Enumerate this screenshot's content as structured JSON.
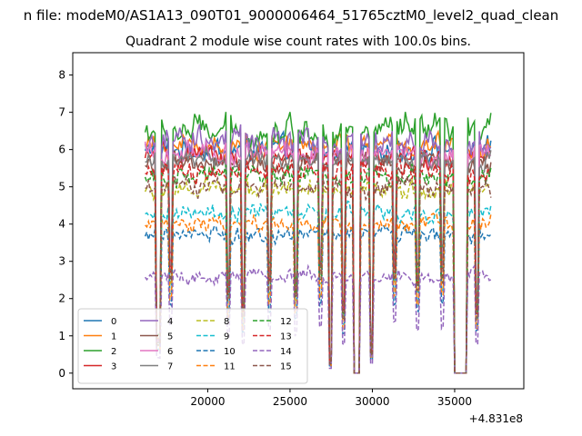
{
  "figure": {
    "suptitle": "n file: modeM0/AS1A13_090T01_9000006464_51765cztM0_level2_quad_clean",
    "offset_text": "+4.831e8"
  },
  "chart_data": {
    "type": "line",
    "title": "Quadrant 2 module wise count rates with 100.0s bins.",
    "xlabel": "",
    "ylabel": "",
    "xlim": [
      11800,
      39200
    ],
    "ylim": [
      -0.42,
      8.6
    ],
    "x_ticks": [
      20000,
      25000,
      30000,
      35000
    ],
    "y_ticks": [
      0,
      1,
      2,
      3,
      4,
      5,
      6,
      7,
      8
    ],
    "x_tick_labels": [
      "20000",
      "25000",
      "30000",
      "35000"
    ],
    "y_tick_labels": [
      "0",
      "1",
      "2",
      "3",
      "4",
      "5",
      "6",
      "7",
      "8"
    ],
    "x_start": 16200,
    "x_end": 37200,
    "x_step": 100,
    "gaps": [
      {
        "start": 16850,
        "end": 17150,
        "depth": 0.15
      },
      {
        "start": 17650,
        "end": 17850,
        "depth": 0.5
      },
      {
        "start": 21150,
        "end": 21350,
        "depth": 0.4
      },
      {
        "start": 22050,
        "end": 22250,
        "depth": 0.3
      },
      {
        "start": 23650,
        "end": 23850,
        "depth": 0.45
      },
      {
        "start": 25250,
        "end": 25450,
        "depth": 0.4
      },
      {
        "start": 26750,
        "end": 26950,
        "depth": 0.5
      },
      {
        "start": 27350,
        "end": 27550,
        "depth": 0.05
      },
      {
        "start": 28150,
        "end": 28350,
        "depth": 0.3
      },
      {
        "start": 28850,
        "end": 29250,
        "depth": 0.0
      },
      {
        "start": 29850,
        "end": 30050,
        "depth": 0.1
      },
      {
        "start": 31250,
        "end": 31450,
        "depth": 0.5
      },
      {
        "start": 32650,
        "end": 32850,
        "depth": 0.45
      },
      {
        "start": 34150,
        "end": 34350,
        "depth": 0.5
      },
      {
        "start": 35000,
        "end": 35700,
        "depth": 0.0
      },
      {
        "start": 36250,
        "end": 36450,
        "depth": 0.3
      }
    ],
    "grid": false,
    "legend_position": "lower-left",
    "legend_columns": 4,
    "series": [
      {
        "name": "0",
        "color": "#1f77b4",
        "dash": "solid",
        "level": 6.0,
        "noise": 0.35
      },
      {
        "name": "1",
        "color": "#ff7f0e",
        "dash": "solid",
        "level": 6.1,
        "noise": 0.35
      },
      {
        "name": "2",
        "color": "#2ca02c",
        "dash": "solid",
        "level": 6.5,
        "noise": 0.45
      },
      {
        "name": "3",
        "color": "#d62728",
        "dash": "solid",
        "level": 5.8,
        "noise": 0.3
      },
      {
        "name": "4",
        "color": "#9467bd",
        "dash": "solid",
        "level": 6.2,
        "noise": 0.45
      },
      {
        "name": "5",
        "color": "#8c564b",
        "dash": "solid",
        "level": 5.6,
        "noise": 0.3
      },
      {
        "name": "6",
        "color": "#e377c2",
        "dash": "solid",
        "level": 5.9,
        "noise": 0.35
      },
      {
        "name": "7",
        "color": "#7f7f7f",
        "dash": "solid",
        "level": 5.7,
        "noise": 0.3
      },
      {
        "name": "8",
        "color": "#bcbd22",
        "dash": "dashed",
        "level": 4.9,
        "noise": 0.3
      },
      {
        "name": "9",
        "color": "#17becf",
        "dash": "dashed",
        "level": 4.3,
        "noise": 0.25
      },
      {
        "name": "10",
        "color": "#1f77b4",
        "dash": "dashed",
        "level": 3.7,
        "noise": 0.25
      },
      {
        "name": "11",
        "color": "#ff7f0e",
        "dash": "dashed",
        "level": 4.0,
        "noise": 0.25
      },
      {
        "name": "12",
        "color": "#2ca02c",
        "dash": "dashed",
        "level": 5.3,
        "noise": 0.3
      },
      {
        "name": "13",
        "color": "#d62728",
        "dash": "dashed",
        "level": 5.4,
        "noise": 0.3
      },
      {
        "name": "14",
        "color": "#9467bd",
        "dash": "dashed",
        "level": 2.6,
        "noise": 0.2
      },
      {
        "name": "15",
        "color": "#8c564b",
        "dash": "dashed",
        "level": 5.0,
        "noise": 0.3
      }
    ]
  }
}
